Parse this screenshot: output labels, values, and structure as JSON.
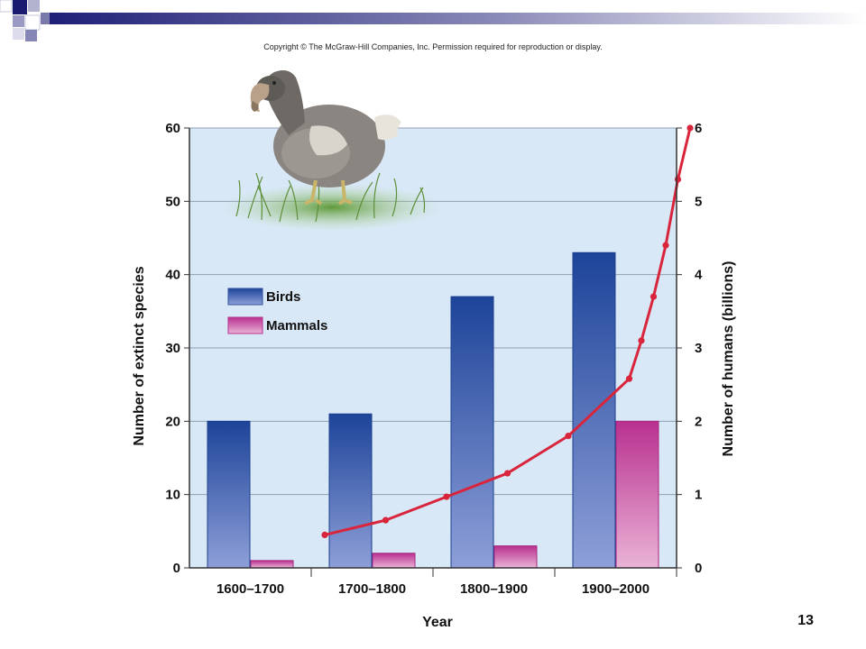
{
  "header": {
    "copyright": "Copyright © The McGraw-Hill Companies, Inc. Permission required for reproduction or display."
  },
  "slide": {
    "page_number": "13"
  },
  "illustration": {
    "icon": "dodo-bird-icon"
  },
  "colors": {
    "birds": "#2f4fa0",
    "mammals": "#c23f9b",
    "humans_line": "#d9253c",
    "plot_bg": "#d8e8f6"
  },
  "chart_data": {
    "type": "bar",
    "xlabel": "Year",
    "ylabel": "Number of extinct species",
    "y2label": "Number of humans (billions)",
    "categories": [
      "1600–1700",
      "1700–1800",
      "1800–1900",
      "1900–2000"
    ],
    "ylim": [
      0,
      60
    ],
    "y_ticks": [
      "0",
      "10",
      "20",
      "30",
      "40",
      "50",
      "60"
    ],
    "y2lim": [
      0,
      6
    ],
    "y2_ticks": [
      "0",
      "1",
      "2",
      "3",
      "4",
      "5",
      "6"
    ],
    "legend": {
      "position": "upper-left",
      "entries": [
        "Birds",
        "Mammals"
      ]
    },
    "series": [
      {
        "name": "Birds",
        "type": "bar",
        "values": [
          20,
          21,
          37,
          43
        ]
      },
      {
        "name": "Mammals",
        "type": "bar",
        "values": [
          1,
          2,
          3,
          20
        ]
      }
    ],
    "humans": {
      "type": "line",
      "axis": "right",
      "x": [
        1700,
        1750,
        1800,
        1850,
        1900,
        1950,
        1960,
        1970,
        1980,
        1990,
        2000
      ],
      "y": [
        0.45,
        0.65,
        0.97,
        1.29,
        1.8,
        2.58,
        3.1,
        3.7,
        4.4,
        5.3,
        6.0
      ]
    }
  }
}
